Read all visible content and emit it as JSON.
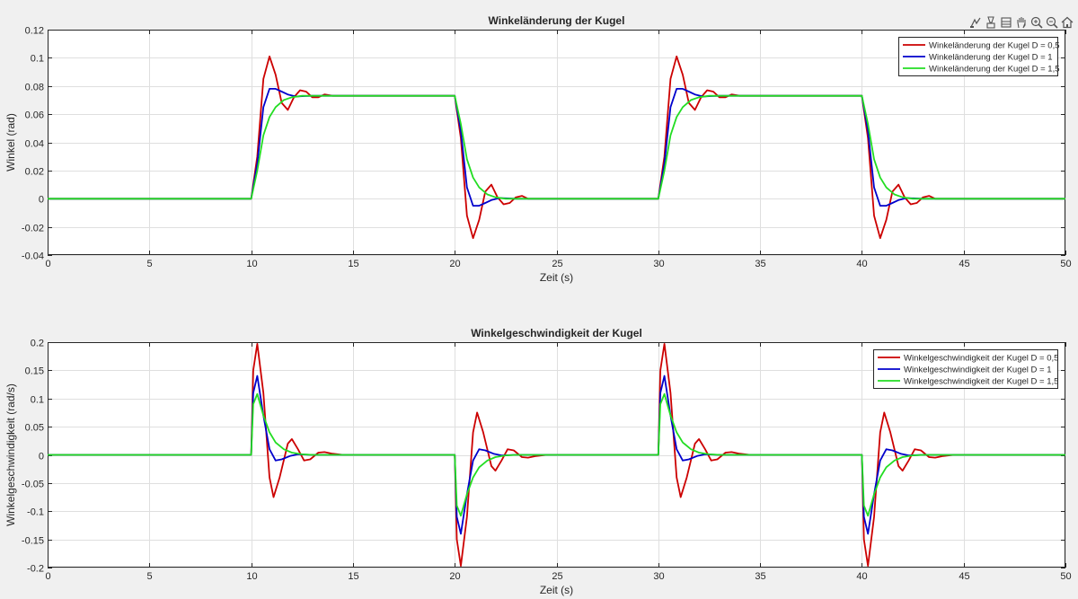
{
  "toolbar": {
    "icons": [
      "data-tips-icon",
      "brush-icon",
      "restore-view-icon",
      "pan-icon",
      "zoom-in-icon",
      "zoom-out-icon",
      "home-icon"
    ]
  },
  "chart_data": [
    {
      "type": "line",
      "title": "Winkeländerung der Kugel",
      "xlabel": "Zeit (s)",
      "ylabel": "Winkel (rad)",
      "xlim": [
        0,
        50
      ],
      "ylim": [
        -0.04,
        0.12
      ],
      "xticks": [
        0,
        5,
        10,
        15,
        20,
        25,
        30,
        35,
        40,
        45,
        50
      ],
      "xtick_labels": [
        "0",
        "5",
        "10",
        "15",
        "20",
        "25",
        "30",
        "35",
        "40",
        "45",
        "50"
      ],
      "yticks": [
        -0.04,
        -0.02,
        0,
        0.02,
        0.04,
        0.06,
        0.08,
        0.1,
        0.12
      ],
      "ytick_labels": [
        "-0.04",
        "-0.02",
        "0",
        "0.02",
        "0.04",
        "0.06",
        "0.08",
        "0.1",
        "0.12"
      ],
      "grid": true,
      "legend_position": "top-right",
      "series": [
        {
          "name": "Winkeländerung der Kugel D = 0,5",
          "color": "#cc0000",
          "x": [
            0,
            10,
            10.3,
            10.6,
            10.9,
            11.2,
            11.5,
            11.8,
            12.1,
            12.4,
            12.7,
            13.0,
            13.3,
            13.6,
            14,
            15,
            20,
            20.3,
            20.6,
            20.9,
            21.2,
            21.5,
            21.8,
            22.1,
            22.4,
            22.7,
            23.0,
            23.3,
            23.6,
            24,
            25,
            30,
            30.3,
            30.6,
            30.9,
            31.2,
            31.5,
            31.8,
            32.1,
            32.4,
            32.7,
            33.0,
            33.3,
            33.6,
            34,
            35,
            40,
            40.3,
            40.6,
            40.9,
            41.2,
            41.5,
            41.8,
            42.1,
            42.4,
            42.7,
            43.0,
            43.3,
            43.6,
            44,
            45,
            50
          ],
          "y": [
            0,
            0,
            0.03,
            0.085,
            0.101,
            0.088,
            0.068,
            0.063,
            0.072,
            0.077,
            0.076,
            0.072,
            0.072,
            0.074,
            0.073,
            0.073,
            0.073,
            0.043,
            -0.012,
            -0.028,
            -0.015,
            0.005,
            0.01,
            0.001,
            -0.004,
            -0.003,
            0.001,
            0.002,
            0,
            0,
            0,
            0,
            0.03,
            0.085,
            0.101,
            0.088,
            0.068,
            0.063,
            0.072,
            0.077,
            0.076,
            0.072,
            0.072,
            0.074,
            0.073,
            0.073,
            0.073,
            0.043,
            -0.012,
            -0.028,
            -0.015,
            0.005,
            0.01,
            0.001,
            -0.004,
            -0.003,
            0.001,
            0.002,
            0,
            0,
            0,
            0
          ]
        },
        {
          "name": "Winkeländerung der Kugel D = 1",
          "color": "#0000cc",
          "x": [
            0,
            10,
            10.3,
            10.6,
            10.9,
            11.2,
            11.5,
            11.8,
            12.2,
            12.6,
            13,
            14,
            15,
            20,
            20.3,
            20.6,
            20.9,
            21.2,
            21.5,
            21.8,
            22.2,
            22.6,
            23,
            24,
            25,
            30,
            30.3,
            30.6,
            30.9,
            31.2,
            31.5,
            31.8,
            32.2,
            32.6,
            33,
            34,
            35,
            40,
            40.3,
            40.6,
            40.9,
            41.2,
            41.5,
            41.8,
            42.2,
            42.6,
            43,
            44,
            45,
            50
          ],
          "y": [
            0,
            0,
            0.025,
            0.065,
            0.078,
            0.078,
            0.076,
            0.074,
            0.0725,
            0.0728,
            0.073,
            0.073,
            0.073,
            0.073,
            0.048,
            0.008,
            -0.005,
            -0.005,
            -0.003,
            -0.001,
            0.0005,
            0.0002,
            0,
            0,
            0,
            0,
            0.025,
            0.065,
            0.078,
            0.078,
            0.076,
            0.074,
            0.0725,
            0.0728,
            0.073,
            0.073,
            0.073,
            0.073,
            0.048,
            0.008,
            -0.005,
            -0.005,
            -0.003,
            -0.001,
            0.0005,
            0.0002,
            0,
            0,
            0,
            0
          ]
        },
        {
          "name": "Winkeländerung der Kugel D = 1,5",
          "color": "#22dd22",
          "x": [
            0,
            10,
            10.3,
            10.6,
            10.9,
            11.2,
            11.6,
            12.0,
            12.5,
            13,
            14,
            15,
            20,
            20.3,
            20.6,
            20.9,
            21.2,
            21.6,
            22.0,
            22.5,
            23,
            24,
            25,
            30,
            30.3,
            30.6,
            30.9,
            31.2,
            31.6,
            32.0,
            32.5,
            33,
            34,
            35,
            40,
            40.3,
            40.6,
            40.9,
            41.2,
            41.6,
            42.0,
            42.5,
            43,
            44,
            45,
            50
          ],
          "y": [
            0,
            0,
            0.02,
            0.045,
            0.058,
            0.065,
            0.07,
            0.072,
            0.073,
            0.073,
            0.073,
            0.073,
            0.073,
            0.053,
            0.028,
            0.015,
            0.008,
            0.003,
            0.001,
            0,
            0,
            0,
            0,
            0,
            0.02,
            0.045,
            0.058,
            0.065,
            0.07,
            0.072,
            0.073,
            0.073,
            0.073,
            0.073,
            0.073,
            0.053,
            0.028,
            0.015,
            0.008,
            0.003,
            0.001,
            0,
            0,
            0,
            0,
            0
          ]
        }
      ]
    },
    {
      "type": "line",
      "title": "Winkelgeschwindigkeit der Kugel",
      "xlabel": "Zeit (s)",
      "ylabel": "Winkelgeschwindigkeit (rad/s)",
      "xlim": [
        0,
        50
      ],
      "ylim": [
        -0.2,
        0.2
      ],
      "xticks": [
        0,
        5,
        10,
        15,
        20,
        25,
        30,
        35,
        40,
        45,
        50
      ],
      "xtick_labels": [
        "0",
        "5",
        "10",
        "15",
        "20",
        "25",
        "30",
        "35",
        "40",
        "45",
        "50"
      ],
      "yticks": [
        -0.2,
        -0.15,
        -0.1,
        -0.05,
        0,
        0.05,
        0.1,
        0.15,
        0.2
      ],
      "ytick_labels": [
        "-0.2",
        "-0.15",
        "-0.1",
        "-0.05",
        "0",
        "0.05",
        "0.1",
        "0.15",
        "0.2"
      ],
      "grid": true,
      "legend_position": "top-right",
      "series": [
        {
          "name": "Winkelgeschwindigkeit der Kugel D = 0,5",
          "color": "#cc0000",
          "x": [
            0,
            10,
            10.1,
            10.3,
            10.6,
            10.9,
            11.1,
            11.4,
            11.8,
            12.0,
            12.3,
            12.6,
            12.9,
            13.3,
            13.6,
            14,
            14.5,
            15,
            20,
            20.1,
            20.3,
            20.6,
            20.9,
            21.1,
            21.4,
            21.8,
            22.0,
            22.3,
            22.6,
            22.9,
            23.3,
            23.6,
            24,
            24.5,
            25,
            30,
            30.1,
            30.3,
            30.6,
            30.9,
            31.1,
            31.4,
            31.8,
            32.0,
            32.3,
            32.6,
            32.9,
            33.3,
            33.6,
            34,
            34.5,
            35,
            40,
            40.1,
            40.3,
            40.6,
            40.9,
            41.1,
            41.4,
            41.8,
            42.0,
            42.3,
            42.6,
            42.9,
            43.3,
            43.6,
            44,
            44.5,
            45,
            50
          ],
          "y": [
            0,
            0,
            0.15,
            0.197,
            0.11,
            -0.04,
            -0.075,
            -0.04,
            0.02,
            0.028,
            0.01,
            -0.01,
            -0.008,
            0.004,
            0.005,
            0.002,
            0,
            0,
            0,
            -0.15,
            -0.197,
            -0.11,
            0.04,
            0.075,
            0.04,
            -0.02,
            -0.028,
            -0.01,
            0.01,
            0.008,
            -0.004,
            -0.005,
            -0.002,
            0,
            0,
            0,
            0.15,
            0.197,
            0.11,
            -0.04,
            -0.075,
            -0.04,
            0.02,
            0.028,
            0.01,
            -0.01,
            -0.008,
            0.004,
            0.005,
            0.002,
            0,
            0,
            0,
            -0.15,
            -0.197,
            -0.11,
            0.04,
            0.075,
            0.04,
            -0.02,
            -0.028,
            -0.01,
            0.01,
            0.008,
            -0.004,
            -0.005,
            -0.002,
            0,
            0,
            0
          ]
        },
        {
          "name": "Winkelgeschwindigkeit der Kugel D = 1",
          "color": "#0000cc",
          "x": [
            0,
            10,
            10.1,
            10.3,
            10.6,
            10.9,
            11.2,
            11.5,
            11.9,
            12.3,
            13,
            14,
            15,
            20,
            20.1,
            20.3,
            20.6,
            20.9,
            21.2,
            21.5,
            21.9,
            22.3,
            23,
            24,
            25,
            30,
            30.1,
            30.3,
            30.6,
            30.9,
            31.2,
            31.5,
            31.9,
            32.3,
            33,
            34,
            35,
            40,
            40.1,
            40.3,
            40.6,
            40.9,
            41.2,
            41.5,
            41.9,
            42.3,
            43,
            44,
            45,
            50
          ],
          "y": [
            0,
            0,
            0.11,
            0.14,
            0.07,
            0.01,
            -0.01,
            -0.008,
            -0.002,
            0.001,
            0,
            0,
            0,
            0,
            -0.11,
            -0.14,
            -0.07,
            -0.01,
            0.01,
            0.008,
            0.002,
            -0.001,
            0,
            0,
            0,
            0,
            0.11,
            0.14,
            0.07,
            0.01,
            -0.01,
            -0.008,
            -0.002,
            0.001,
            0,
            0,
            0,
            0,
            -0.11,
            -0.14,
            -0.07,
            -0.01,
            0.01,
            0.008,
            0.002,
            -0.001,
            0,
            0,
            0,
            0
          ]
        },
        {
          "name": "Winkelgeschwindigkeit der Kugel D = 1,5",
          "color": "#22dd22",
          "x": [
            0,
            10,
            10.1,
            10.3,
            10.6,
            10.9,
            11.2,
            11.6,
            12.0,
            12.5,
            13,
            14,
            15,
            20,
            20.1,
            20.3,
            20.6,
            20.9,
            21.2,
            21.6,
            22.0,
            22.5,
            23,
            24,
            25,
            30,
            30.1,
            30.3,
            30.6,
            30.9,
            31.2,
            31.6,
            32.0,
            32.5,
            33,
            34,
            35,
            40,
            40.1,
            40.3,
            40.6,
            40.9,
            41.2,
            41.6,
            42.0,
            42.5,
            43,
            44,
            45,
            50
          ],
          "y": [
            0,
            0,
            0.09,
            0.108,
            0.07,
            0.04,
            0.022,
            0.01,
            0.004,
            0.001,
            0,
            0,
            0,
            0,
            -0.09,
            -0.108,
            -0.07,
            -0.04,
            -0.022,
            -0.01,
            -0.004,
            -0.001,
            0,
            0,
            0,
            0,
            0.09,
            0.108,
            0.07,
            0.04,
            0.022,
            0.01,
            0.004,
            0.001,
            0,
            0,
            0,
            0,
            -0.09,
            -0.108,
            -0.07,
            -0.04,
            -0.022,
            -0.01,
            -0.004,
            -0.001,
            0,
            0,
            0,
            0
          ]
        }
      ]
    }
  ]
}
